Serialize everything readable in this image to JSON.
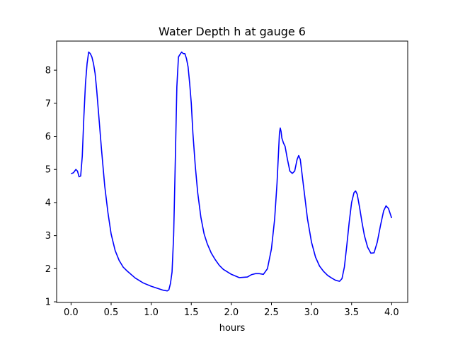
{
  "chart_data": {
    "type": "line",
    "title": "Water Depth h at gauge 6",
    "xlabel": "hours",
    "ylabel": "",
    "xlim": [
      -0.18,
      4.2
    ],
    "ylim": [
      0.98,
      8.88
    ],
    "xticks": [
      0.0,
      0.5,
      1.0,
      1.5,
      2.0,
      2.5,
      3.0,
      3.5,
      4.0
    ],
    "xtick_labels": [
      "0.0",
      "0.5",
      "1.0",
      "1.5",
      "2.0",
      "2.5",
      "3.0",
      "3.5",
      "4.0"
    ],
    "yticks": [
      1,
      2,
      3,
      4,
      5,
      6,
      7,
      8
    ],
    "ytick_labels": [
      "1",
      "2",
      "3",
      "4",
      "5",
      "6",
      "7",
      "8"
    ],
    "grid": false,
    "series": [
      {
        "color": "#0000ff",
        "x": [
          0.0,
          0.03,
          0.06,
          0.08,
          0.1,
          0.12,
          0.14,
          0.16,
          0.18,
          0.2,
          0.22,
          0.24,
          0.26,
          0.28,
          0.3,
          0.32,
          0.35,
          0.38,
          0.42,
          0.46,
          0.5,
          0.55,
          0.6,
          0.65,
          0.7,
          0.8,
          0.9,
          1.0,
          1.1,
          1.15,
          1.2,
          1.22,
          1.24,
          1.26,
          1.28,
          1.3,
          1.32,
          1.34,
          1.36,
          1.38,
          1.4,
          1.42,
          1.44,
          1.46,
          1.48,
          1.5,
          1.52,
          1.55,
          1.58,
          1.62,
          1.66,
          1.7,
          1.75,
          1.8,
          1.85,
          1.9,
          2.0,
          2.1,
          2.2,
          2.25,
          2.3,
          2.35,
          2.4,
          2.45,
          2.5,
          2.54,
          2.57,
          2.59,
          2.6,
          2.61,
          2.62,
          2.63,
          2.65,
          2.67,
          2.7,
          2.73,
          2.76,
          2.79,
          2.82,
          2.84,
          2.86,
          2.88,
          2.91,
          2.95,
          3.0,
          3.05,
          3.1,
          3.15,
          3.2,
          3.25,
          3.3,
          3.35,
          3.38,
          3.41,
          3.44,
          3.47,
          3.5,
          3.53,
          3.55,
          3.57,
          3.6,
          3.63,
          3.66,
          3.7,
          3.74,
          3.78,
          3.82,
          3.86,
          3.9,
          3.93,
          3.96,
          4.0
        ],
        "y": [
          4.87,
          4.9,
          5.0,
          4.95,
          4.78,
          4.8,
          5.4,
          6.6,
          7.6,
          8.2,
          8.55,
          8.5,
          8.4,
          8.2,
          7.9,
          7.4,
          6.5,
          5.6,
          4.5,
          3.7,
          3.05,
          2.55,
          2.25,
          2.05,
          1.93,
          1.72,
          1.57,
          1.47,
          1.39,
          1.35,
          1.33,
          1.36,
          1.55,
          1.9,
          3.0,
          5.2,
          7.5,
          8.4,
          8.48,
          8.55,
          8.5,
          8.5,
          8.35,
          8.1,
          7.6,
          7.0,
          6.1,
          5.1,
          4.3,
          3.55,
          3.05,
          2.75,
          2.47,
          2.27,
          2.1,
          1.98,
          1.83,
          1.73,
          1.75,
          1.82,
          1.85,
          1.85,
          1.83,
          2.0,
          2.6,
          3.5,
          4.6,
          5.6,
          6.1,
          6.25,
          6.15,
          5.95,
          5.8,
          5.7,
          5.3,
          4.95,
          4.88,
          4.95,
          5.3,
          5.42,
          5.3,
          4.9,
          4.3,
          3.5,
          2.8,
          2.35,
          2.08,
          1.92,
          1.8,
          1.72,
          1.65,
          1.62,
          1.7,
          2.05,
          2.7,
          3.4,
          4.0,
          4.3,
          4.35,
          4.25,
          3.85,
          3.4,
          3.0,
          2.65,
          2.47,
          2.48,
          2.8,
          3.3,
          3.75,
          3.9,
          3.82,
          3.53
        ]
      }
    ]
  }
}
